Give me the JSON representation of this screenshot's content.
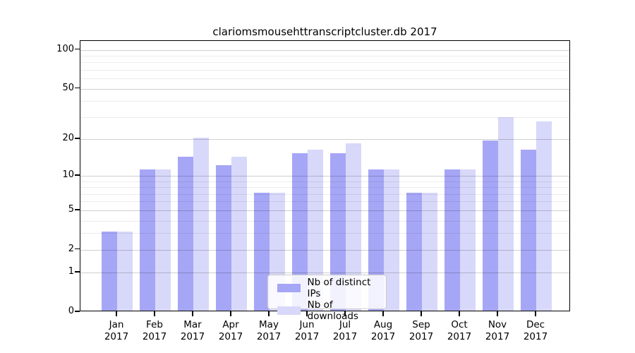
{
  "chart_data": {
    "type": "bar",
    "title": "clariomsmousehttranscriptcluster.db 2017",
    "categories": [
      "Jan",
      "Feb",
      "Mar",
      "Apr",
      "May",
      "Jun",
      "Jul",
      "Aug",
      "Sep",
      "Oct",
      "Nov",
      "Dec"
    ],
    "x_sublabel": "2017",
    "series": [
      {
        "name": "Nb of distinct IPs",
        "color": "#a6a6f6",
        "values": [
          3,
          11,
          14,
          12,
          7,
          15,
          15,
          11,
          7,
          11,
          19,
          16
        ]
      },
      {
        "name": "Nb of downloads",
        "color": "#d8d8fa",
        "values": [
          3,
          11,
          20,
          14,
          7,
          16,
          18,
          11,
          7,
          11,
          29,
          27
        ]
      }
    ],
    "yscale": "log1p",
    "ylim": [
      0,
      117
    ],
    "y_major_ticks": [
      0,
      1,
      2,
      5,
      10,
      20,
      50,
      100
    ],
    "y_minor_gridlines": [
      3,
      4,
      6,
      7,
      8,
      9,
      30,
      40,
      60,
      70,
      80,
      90
    ],
    "grid": true,
    "legend": {
      "position": "lower-center"
    }
  }
}
